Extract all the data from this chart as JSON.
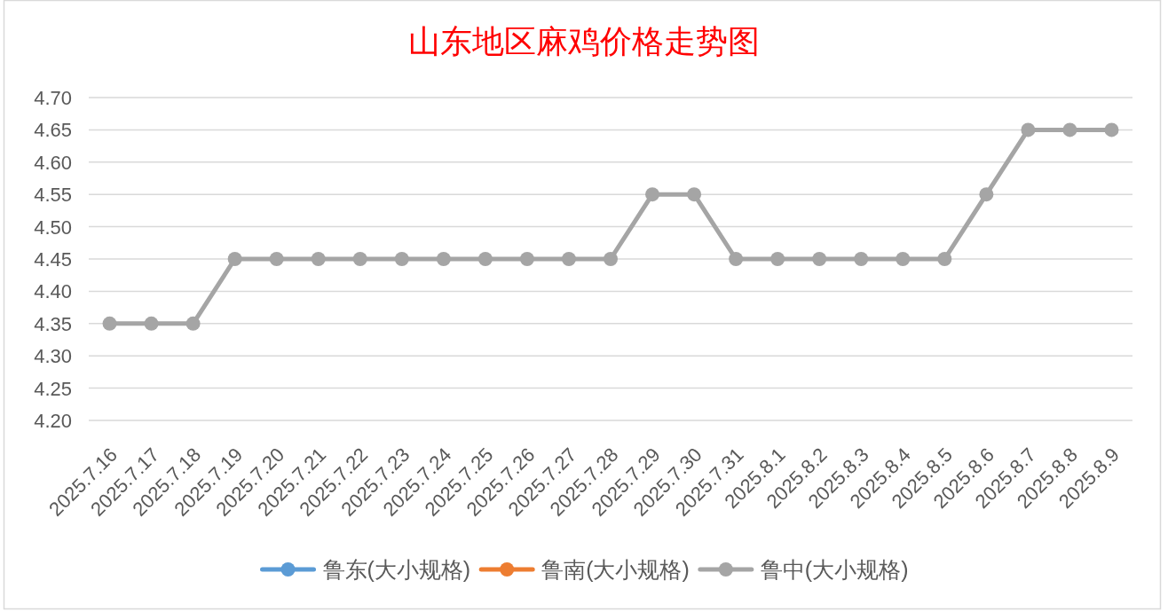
{
  "chart_data": {
    "type": "line",
    "title": "山东地区麻鸡价格走势图",
    "categories": [
      "2025.7.16",
      "2025.7.17",
      "2025.7.18",
      "2025.7.19",
      "2025.7.20",
      "2025.7.21",
      "2025.7.22",
      "2025.7.23",
      "2025.7.24",
      "2025.7.25",
      "2025.7.26",
      "2025.7.27",
      "2025.7.28",
      "2025.7.29",
      "2025.7.30",
      "2025.7.31",
      "2025.8.1",
      "2025.8.2",
      "2025.8.3",
      "2025.8.4",
      "2025.8.5",
      "2025.8.6",
      "2025.8.7",
      "2025.8.8",
      "2025.8.9"
    ],
    "series": [
      {
        "name": "鲁东(大小规格)",
        "color": "#5b9bd5",
        "values": [
          null,
          null,
          null,
          null,
          null,
          null,
          null,
          null,
          null,
          null,
          null,
          null,
          null,
          null,
          null,
          null,
          null,
          null,
          null,
          null,
          null,
          null,
          null,
          null,
          null
        ]
      },
      {
        "name": "鲁南(大小规格)",
        "color": "#ed7d31",
        "values": [
          null,
          null,
          null,
          null,
          null,
          null,
          null,
          null,
          null,
          null,
          null,
          null,
          null,
          null,
          null,
          null,
          null,
          null,
          null,
          null,
          null,
          null,
          null,
          null,
          null
        ]
      },
      {
        "name": "鲁中(大小规格)",
        "color": "#a5a5a5",
        "values": [
          4.35,
          4.35,
          4.35,
          4.45,
          4.45,
          4.45,
          4.45,
          4.45,
          4.45,
          4.45,
          4.45,
          4.45,
          4.45,
          4.55,
          4.55,
          4.45,
          4.45,
          4.45,
          4.45,
          4.45,
          4.45,
          4.55,
          4.65,
          4.65,
          4.65
        ]
      }
    ],
    "ylim": [
      4.2,
      4.7
    ],
    "yticks": [
      {
        "value": 4.2,
        "label": "4.20"
      },
      4.25,
      {
        "value": 4.3,
        "label": "4.30"
      },
      4.35,
      {
        "value": 4.4,
        "label": "4.40"
      },
      4.45,
      {
        "value": 4.5,
        "label": "4.50"
      },
      4.55,
      {
        "value": 4.6,
        "label": "4.60"
      },
      4.65,
      {
        "value": 4.7,
        "label": "4.70"
      }
    ],
    "grid": "y",
    "legend": "bottom",
    "marker": "circle",
    "line_style": "solid"
  }
}
